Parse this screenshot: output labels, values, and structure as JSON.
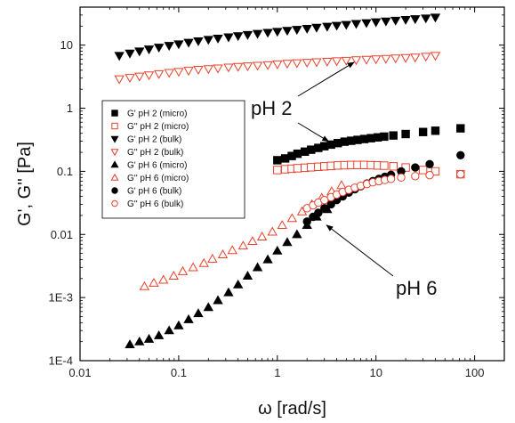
{
  "chart_data": {
    "type": "scatter",
    "xlabel": "ω [rad/s]",
    "ylabel": "G', G'' [Pa]",
    "xscale": "log",
    "yscale": "log",
    "xlim": [
      0.01,
      200
    ],
    "ylim": [
      0.0001,
      40
    ],
    "x_ticks": [
      {
        "value": 0.01,
        "label": "0.01"
      },
      {
        "value": 0.1,
        "label": "0.1"
      },
      {
        "value": 1,
        "label": "1"
      },
      {
        "value": 10,
        "label": "10"
      },
      {
        "value": 100,
        "label": "100"
      }
    ],
    "y_ticks": [
      {
        "value": 0.0001,
        "label": "1E-4"
      },
      {
        "value": 0.001,
        "label": "1E-3"
      },
      {
        "value": 0.01,
        "label": "0.01"
      },
      {
        "value": 0.1,
        "label": "0.1"
      },
      {
        "value": 1,
        "label": "1"
      },
      {
        "value": 10,
        "label": "10"
      }
    ],
    "legend_position": "upper-left",
    "series": [
      {
        "name": "G' pH 2 (micro)",
        "marker": "square",
        "filled": true,
        "color": "#000000",
        "x": [
          1.0,
          1.2,
          1.4,
          1.6,
          1.9,
          2.2,
          2.6,
          3.0,
          3.5,
          4.1,
          4.8,
          5.6,
          6.5,
          7.6,
          8.9,
          10.4,
          12.1,
          15,
          20,
          30,
          40,
          72
        ],
        "y": [
          0.15,
          0.16,
          0.175,
          0.19,
          0.205,
          0.22,
          0.235,
          0.25,
          0.265,
          0.28,
          0.295,
          0.305,
          0.315,
          0.325,
          0.335,
          0.345,
          0.355,
          0.37,
          0.39,
          0.42,
          0.44,
          0.48
        ]
      },
      {
        "name": "G'' pH 2 (micro)",
        "marker": "square",
        "filled": false,
        "color": "#e8402a",
        "x": [
          1.0,
          1.2,
          1.4,
          1.6,
          1.9,
          2.2,
          2.6,
          3.0,
          3.5,
          4.1,
          4.8,
          5.6,
          6.5,
          7.6,
          8.9,
          10.4,
          12.1,
          15,
          20,
          30,
          40,
          72
        ],
        "y": [
          0.105,
          0.108,
          0.11,
          0.112,
          0.114,
          0.116,
          0.118,
          0.12,
          0.122,
          0.124,
          0.125,
          0.126,
          0.126,
          0.126,
          0.125,
          0.124,
          0.123,
          0.12,
          0.115,
          0.105,
          0.1,
          0.09
        ]
      },
      {
        "name": "G' pH 2 (bulk)",
        "marker": "triangle-down",
        "filled": true,
        "color": "#000000",
        "x": [
          0.025,
          0.032,
          0.04,
          0.05,
          0.063,
          0.08,
          0.1,
          0.126,
          0.158,
          0.2,
          0.25,
          0.32,
          0.4,
          0.5,
          0.63,
          0.8,
          1.0,
          1.26,
          1.58,
          2.0,
          2.5,
          3.2,
          4.0,
          5.0,
          6.3,
          8.0,
          10,
          12.6,
          15.8,
          20,
          25,
          32,
          40
        ],
        "y": [
          6.8,
          7.4,
          8.0,
          8.6,
          9.2,
          9.8,
          10.4,
          11.0,
          11.6,
          12.2,
          12.8,
          13.4,
          14.0,
          14.6,
          15.2,
          15.8,
          16.4,
          17.0,
          17.6,
          18.3,
          19.0,
          19.7,
          20.4,
          21.1,
          21.8,
          22.5,
          23.2,
          23.9,
          24.6,
          25.3,
          26.0,
          26.7,
          27.5
        ]
      },
      {
        "name": "G'' pH 2 (bulk)",
        "marker": "triangle-down",
        "filled": false,
        "color": "#e8402a",
        "x": [
          0.025,
          0.032,
          0.04,
          0.05,
          0.063,
          0.08,
          0.1,
          0.126,
          0.158,
          0.2,
          0.25,
          0.32,
          0.4,
          0.5,
          0.63,
          0.8,
          1.0,
          1.26,
          1.58,
          2.0,
          2.5,
          3.2,
          4.0,
          5.0,
          6.3,
          8.0,
          10,
          12.6,
          15.8,
          20,
          25,
          32,
          40
        ],
        "y": [
          2.9,
          3.05,
          3.2,
          3.35,
          3.5,
          3.65,
          3.8,
          3.95,
          4.1,
          4.2,
          4.3,
          4.45,
          4.55,
          4.65,
          4.75,
          4.85,
          5.0,
          5.1,
          5.2,
          5.3,
          5.4,
          5.5,
          5.6,
          5.7,
          5.8,
          5.9,
          6.0,
          6.1,
          6.2,
          6.3,
          6.4,
          6.6,
          6.8
        ]
      },
      {
        "name": "G' pH 6 (micro)",
        "marker": "triangle-up",
        "filled": true,
        "color": "#000000",
        "x": [
          0.032,
          0.04,
          0.05,
          0.063,
          0.08,
          0.1,
          0.126,
          0.158,
          0.2,
          0.25,
          0.32,
          0.4,
          0.5,
          0.63,
          0.8,
          1.0,
          1.26,
          1.58,
          2.0,
          2.5,
          3.2
        ],
        "y": [
          0.00018,
          0.0002,
          0.00022,
          0.00025,
          0.0003,
          0.00036,
          0.00045,
          0.00056,
          0.0007,
          0.0009,
          0.0012,
          0.0016,
          0.0022,
          0.003,
          0.004,
          0.0055,
          0.0075,
          0.01,
          0.014,
          0.019,
          0.025
        ]
      },
      {
        "name": "G'' pH 6 (micro)",
        "marker": "triangle-up",
        "filled": false,
        "color": "#e8402a",
        "x": [
          0.045,
          0.056,
          0.07,
          0.089,
          0.11,
          0.14,
          0.18,
          0.22,
          0.28,
          0.35,
          0.45,
          0.56,
          0.7,
          0.89,
          1.12,
          1.41,
          1.78,
          2.24,
          2.82,
          3.55,
          4.47
        ],
        "y": [
          0.0015,
          0.0017,
          0.0019,
          0.0022,
          0.0026,
          0.003,
          0.0035,
          0.0041,
          0.0048,
          0.0056,
          0.0066,
          0.0078,
          0.0092,
          0.011,
          0.014,
          0.018,
          0.023,
          0.03,
          0.038,
          0.048,
          0.06
        ]
      },
      {
        "name": "G' pH 6 (bulk)",
        "marker": "circle",
        "filled": true,
        "color": "#000000",
        "x": [
          2.0,
          2.3,
          2.6,
          3.0,
          3.5,
          4.0,
          4.6,
          5.3,
          6.1,
          7.0,
          8.1,
          9.3,
          10.7,
          12.3,
          14.2,
          18,
          25,
          35,
          72
        ],
        "y": [
          0.016,
          0.019,
          0.022,
          0.026,
          0.03,
          0.035,
          0.04,
          0.046,
          0.052,
          0.058,
          0.064,
          0.07,
          0.076,
          0.082,
          0.088,
          0.1,
          0.115,
          0.13,
          0.18
        ]
      },
      {
        "name": "G'' pH 6 (bulk)",
        "marker": "circle",
        "filled": false,
        "color": "#e8402a",
        "x": [
          2.0,
          2.3,
          2.6,
          3.0,
          3.5,
          4.0,
          4.6,
          5.3,
          6.1,
          7.0,
          8.1,
          9.3,
          10.7,
          12.3,
          14.2,
          18,
          25,
          35,
          72
        ],
        "y": [
          0.026,
          0.029,
          0.032,
          0.035,
          0.039,
          0.043,
          0.047,
          0.051,
          0.055,
          0.059,
          0.063,
          0.067,
          0.07,
          0.073,
          0.076,
          0.08,
          0.084,
          0.087,
          0.09
        ]
      }
    ],
    "annotations": [
      {
        "text": "pH 2",
        "arrow_targets": [
          [
            6.0,
            6.5
          ],
          [
            3.6,
            0.27
          ]
        ]
      },
      {
        "text": "pH 6",
        "arrow_targets": [
          [
            2.9,
            0.015
          ]
        ]
      }
    ]
  }
}
